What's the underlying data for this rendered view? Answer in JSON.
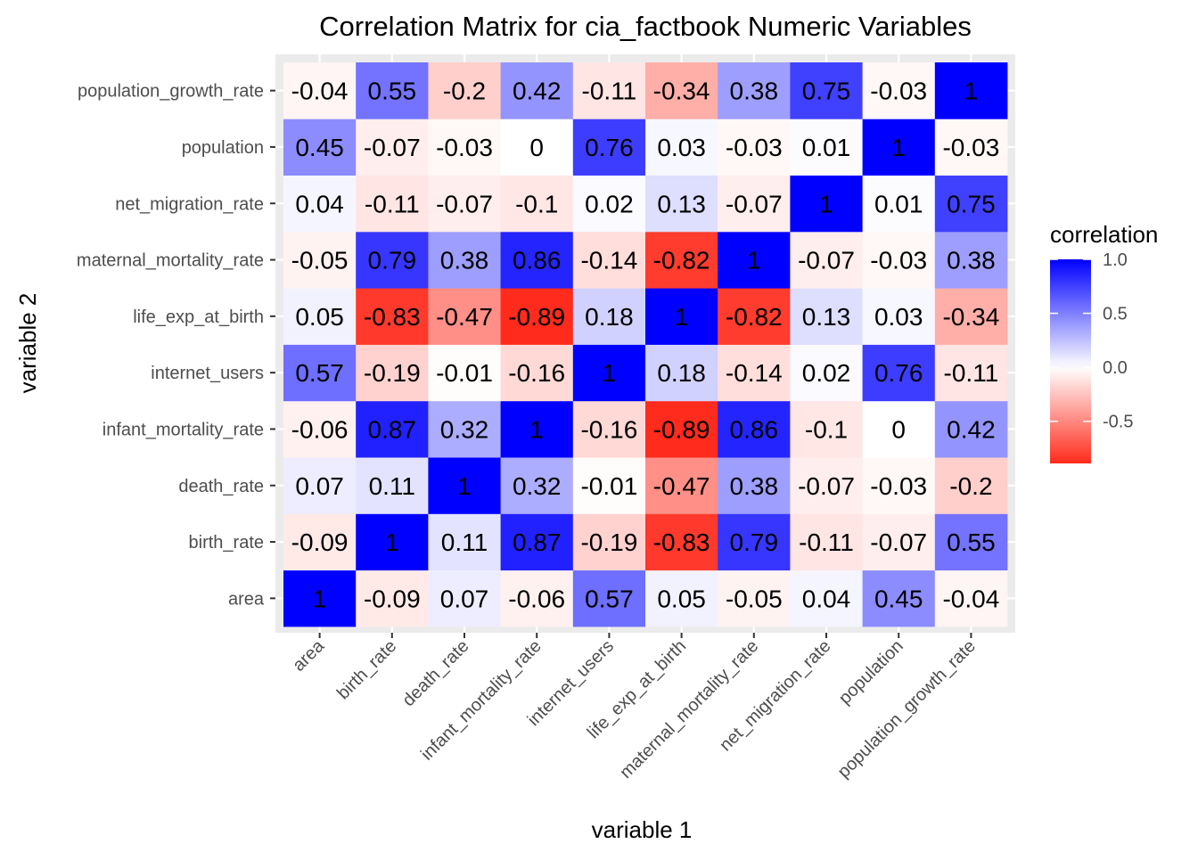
{
  "chart_data": {
    "type": "heatmap",
    "title": "Correlation Matrix for cia_factbook Numeric Variables",
    "xlabel": "variable 1",
    "ylabel": "variable 2",
    "variables": [
      "area",
      "birth_rate",
      "death_rate",
      "infant_mortality_rate",
      "internet_users",
      "life_exp_at_birth",
      "maternal_mortality_rate",
      "net_migration_rate",
      "population",
      "population_growth_rate"
    ],
    "matrix": [
      [
        1,
        -0.09,
        0.07,
        -0.06,
        0.57,
        0.05,
        -0.05,
        0.04,
        0.45,
        -0.04
      ],
      [
        -0.09,
        1,
        0.11,
        0.87,
        -0.19,
        -0.83,
        0.79,
        -0.11,
        -0.07,
        0.55
      ],
      [
        0.07,
        0.11,
        1,
        0.32,
        -0.01,
        -0.47,
        0.38,
        -0.07,
        -0.03,
        -0.2
      ],
      [
        -0.06,
        0.87,
        0.32,
        1,
        -0.16,
        -0.89,
        0.86,
        -0.1,
        0,
        0.42
      ],
      [
        0.57,
        -0.19,
        -0.01,
        -0.16,
        1,
        0.18,
        -0.14,
        0.02,
        0.76,
        -0.11
      ],
      [
        0.05,
        -0.83,
        -0.47,
        -0.89,
        0.18,
        1,
        -0.82,
        0.13,
        0.03,
        -0.34
      ],
      [
        -0.05,
        0.79,
        0.38,
        0.86,
        -0.14,
        -0.82,
        1,
        -0.07,
        -0.03,
        0.38
      ],
      [
        0.04,
        -0.11,
        -0.07,
        -0.1,
        0.02,
        0.13,
        -0.07,
        1,
        0.01,
        0.75
      ],
      [
        0.45,
        -0.07,
        -0.03,
        0,
        0.76,
        0.03,
        -0.03,
        0.01,
        1,
        -0.03
      ],
      [
        -0.04,
        0.55,
        -0.2,
        0.42,
        -0.11,
        -0.34,
        0.38,
        0.75,
        -0.03,
        1
      ]
    ],
    "color_scale": {
      "low": "#ff2b1c",
      "mid": "#ffffff",
      "high": "#0000ff",
      "limits": [
        -0.89,
        1
      ]
    },
    "legend": {
      "title": "correlation",
      "ticks": [
        1.0,
        0.5,
        0.0,
        -0.5
      ],
      "tick_labels": [
        "1.0",
        "0.5",
        "0.0",
        "-0.5"
      ],
      "placement": "right"
    },
    "panel_background": "#ebebeb",
    "grid": true
  }
}
